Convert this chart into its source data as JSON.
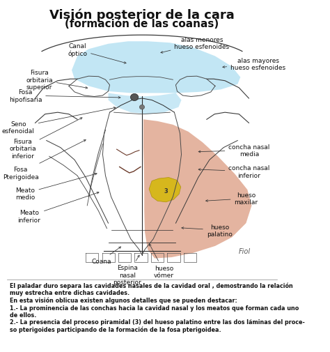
{
  "title_line1": "Visión posterior de la cara",
  "title_line2": "(formación de las coanas)",
  "bg_color": "#ffffff",
  "title_fontsize": 13,
  "subtitle_fontsize": 11,
  "label_fontsize": 6.5,
  "body_text_fontsize": 5.8,
  "annotation_color": "#111111",
  "line_color": "#333333",
  "note_lines": [
    "El paladar duro separa las cavidades nasales de la cavidad oral , demostrando la relación",
    "muy estrecha entre dichas cavidades.",
    "En esta visión oblicua existen algunos detalles que se pueden destacar:",
    "1.- La prominencia de las conchas hacia la cavidad nasal y los meatos que forman cada uno",
    "de ellos.",
    "2.- La presencia del proceso piramidal (3) del hueso palatino entre las dos láminas del proce-",
    "so pterigoides participando de la formación de la fosa pterigoidea."
  ]
}
